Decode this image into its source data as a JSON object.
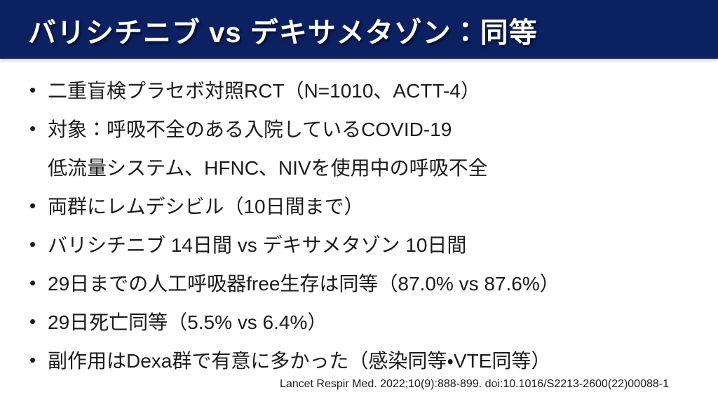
{
  "slide": {
    "title": "バリシチニブ vs デキサメタゾン：同等",
    "bullet_char": "•",
    "bullets": [
      "二重盲検プラセボ対照RCT（N=1010、ACTT-4）",
      "対象：呼吸不全のある入院しているCOVID-19",
      "低流量システム、HFNC、NIVを使用中の呼吸不全",
      "両群にレムデシビル（10日間まで）",
      "バリシチニブ 14日間 vs デキサメタゾン 10日間",
      "29日までの人工呼吸器free生存は同等（87.0% vs 87.6%）",
      "29日死亡同等（5.5% vs 6.4%）",
      "副作用はDexa群で有意に多かった（感染同等・VTE同等）"
    ],
    "citation": "Lancet Respir Med. 2022;10(9):888-899. doi:10.1016/S2213-2600(22)00088-1",
    "colors": {
      "header_bg": "#0c2161",
      "title_text": "#ffffff",
      "body_text": "#1a1a1a"
    }
  }
}
